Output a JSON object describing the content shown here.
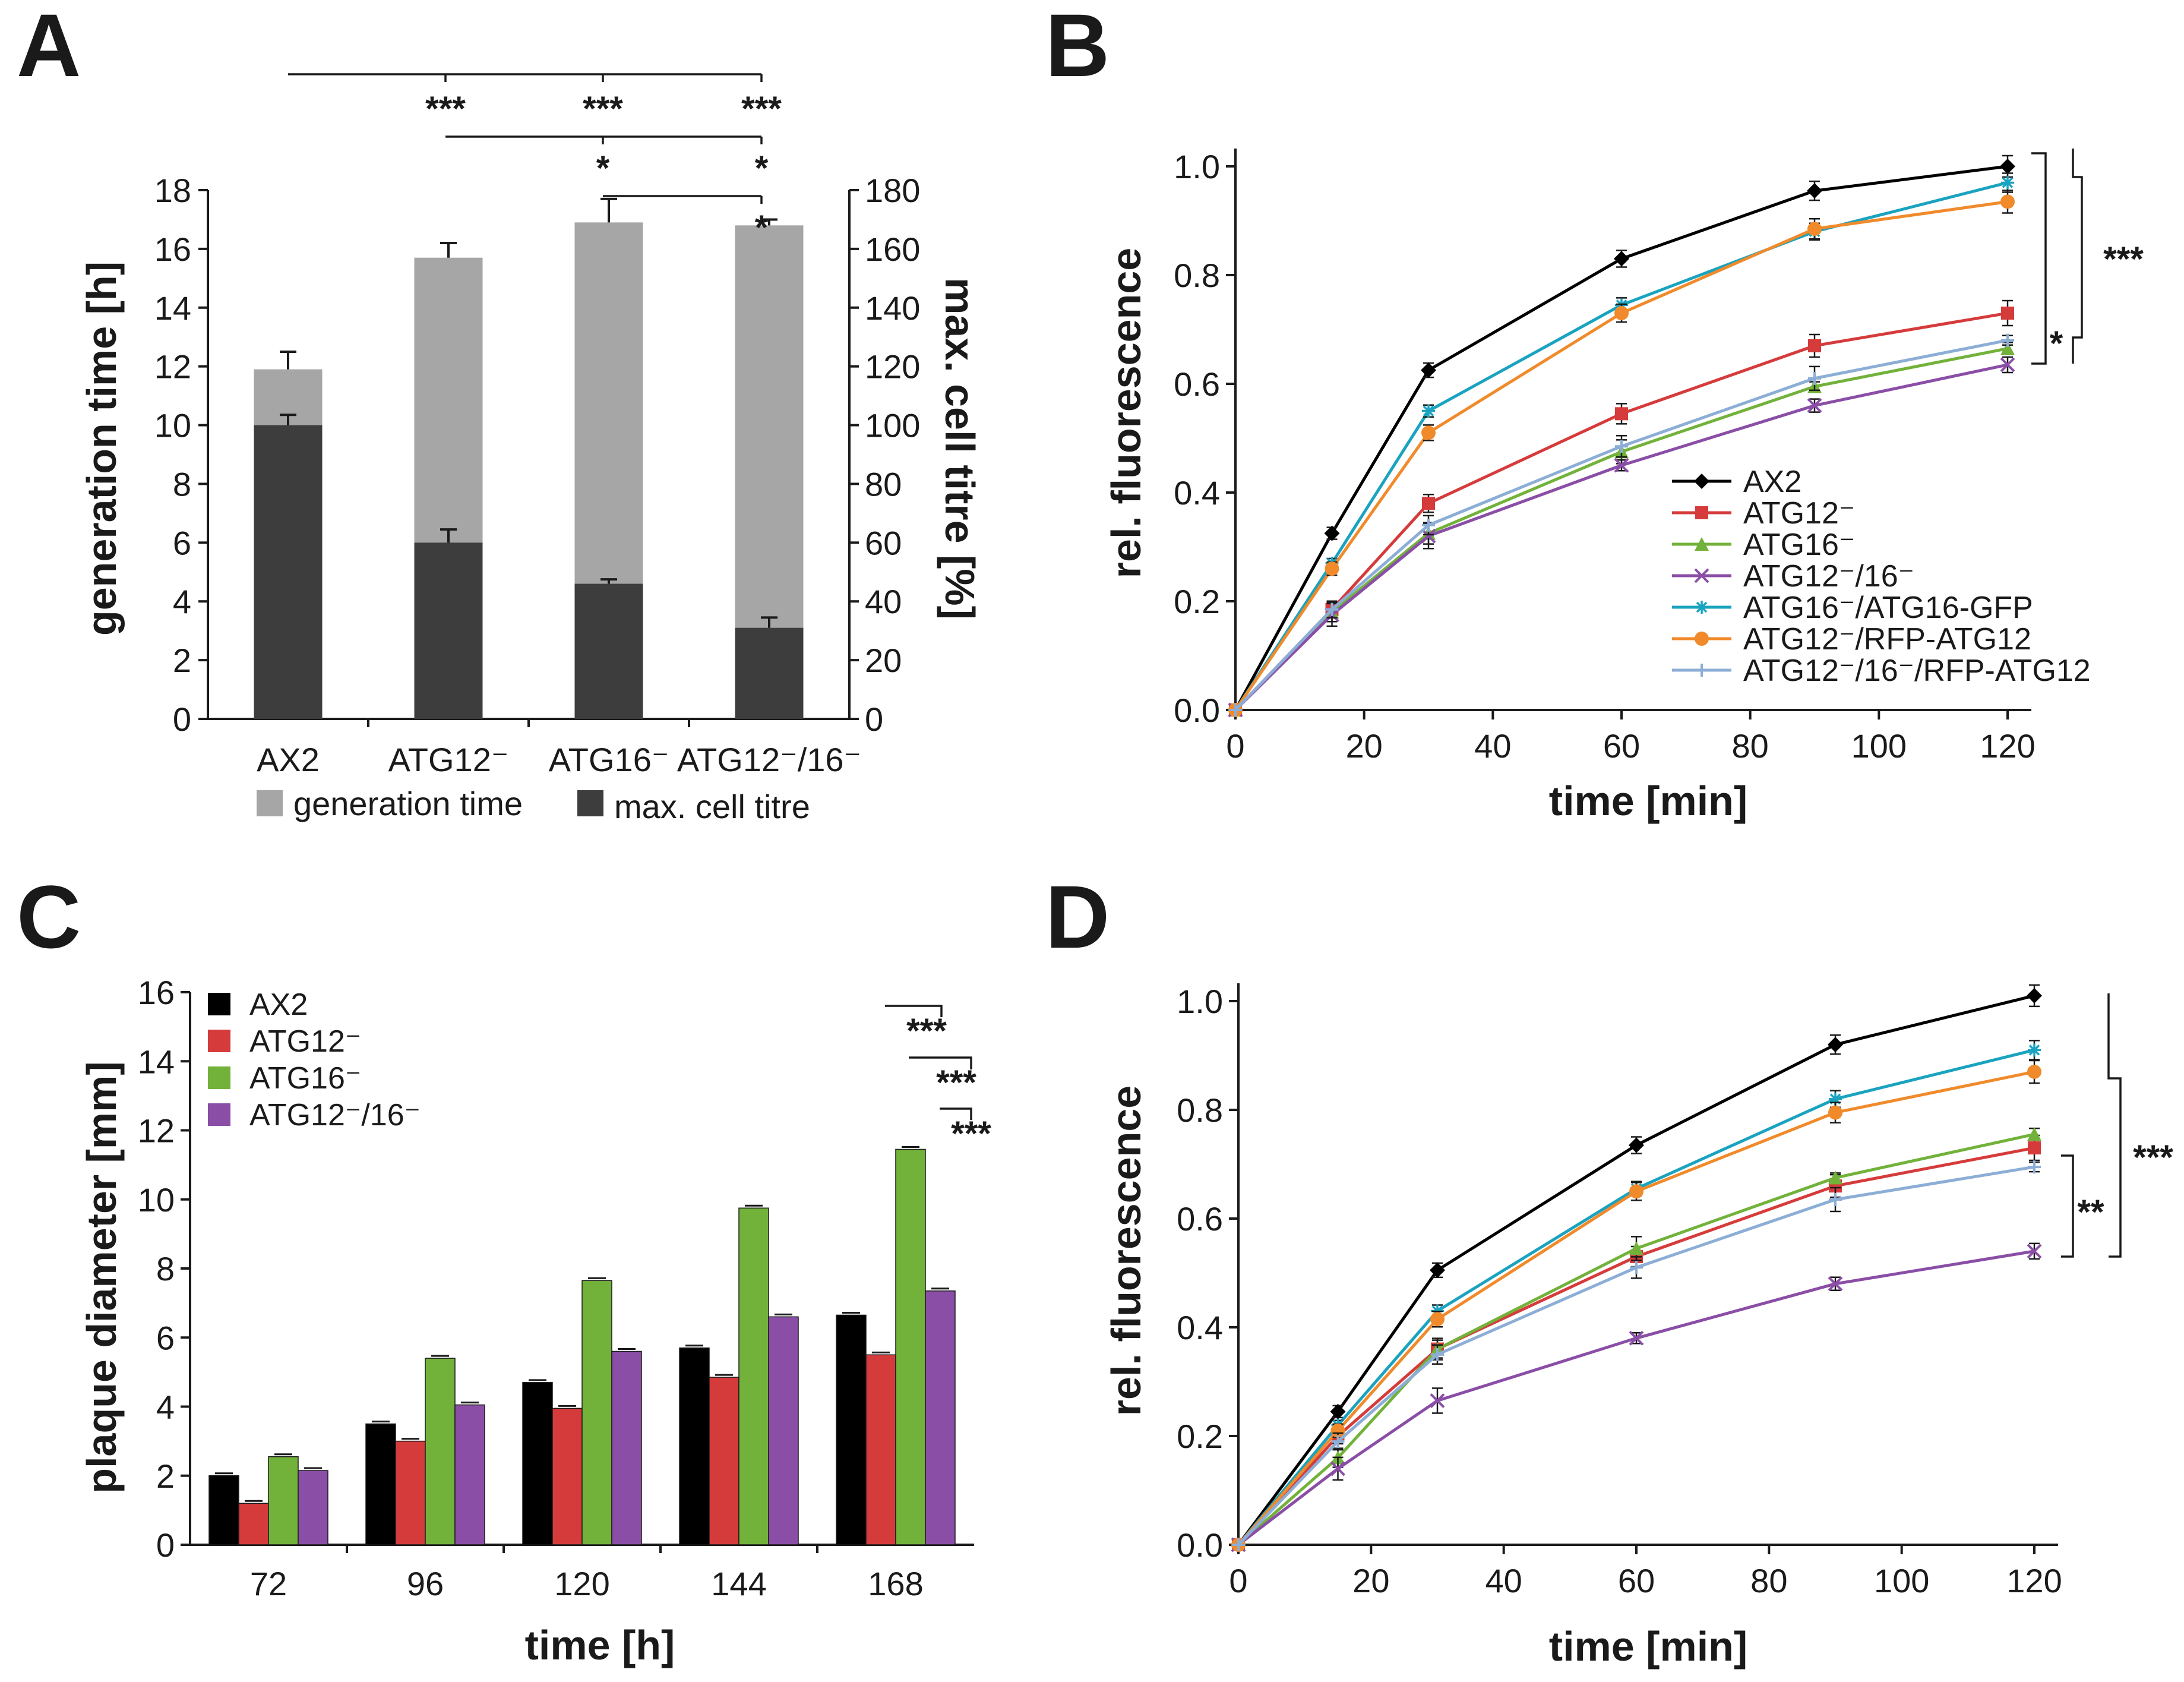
{
  "panels": {
    "A": "A",
    "B": "B",
    "C": "C",
    "D": "D"
  },
  "colors": {
    "gen_time": "#a6a6a6",
    "cell_titre": "#3d3d3d",
    "AX2": "#000000",
    "ATG12": "#d63b3b",
    "ATG16": "#72b23a",
    "ATG12_16": "#8a4ea6",
    "ATG16_GFP": "#1aa3bf",
    "ATG12_RFP": "#f08a2a",
    "ATG12_16_RFP": "#8caed6"
  },
  "chart_data": [
    {
      "id": "A",
      "type": "bar",
      "categories": [
        "AX2",
        "ATG12⁻",
        "ATG16⁻",
        "ATG12⁻/16⁻"
      ],
      "series": [
        {
          "name": "generation time",
          "axis": "left",
          "values": [
            11.9,
            15.7,
            16.9,
            16.8
          ],
          "errors": [
            0.6,
            0.5,
            0.8,
            0.2
          ]
        },
        {
          "name": "max. cell titre",
          "axis": "right",
          "values": [
            100,
            60,
            46,
            31
          ],
          "errors": [
            3.5,
            4.5,
            1.5,
            3.5
          ]
        }
      ],
      "ylabel": "generation time [h]",
      "y2label": "max. cell titre [%]",
      "ylim": [
        0,
        18
      ],
      "y2lim": [
        0,
        180
      ],
      "yticks": [
        "0",
        "2",
        "4",
        "6",
        "8",
        "10",
        "12",
        "14",
        "16",
        "18"
      ],
      "y2ticks": [
        "0",
        "20",
        "40",
        "60",
        "80",
        "100",
        "120",
        "140",
        "160",
        "180"
      ],
      "significance": [
        "***",
        "***",
        "***",
        "*",
        "*",
        "*"
      ]
    },
    {
      "id": "B",
      "type": "line",
      "x": [
        0,
        15,
        30,
        60,
        90,
        120
      ],
      "xticks": [
        "0",
        "20",
        "40",
        "60",
        "80",
        "100",
        "120"
      ],
      "yticks": [
        "0.0",
        "0.2",
        "0.4",
        "0.6",
        "0.8",
        "1.0"
      ],
      "xlim": [
        0,
        120
      ],
      "ylim": [
        0,
        1.0
      ],
      "xlabel": "time [min]",
      "ylabel": "rel. fluorescence",
      "series": [
        {
          "name": "AX2",
          "values": [
            0,
            0.325,
            0.625,
            0.83,
            0.955,
            1.0
          ]
        },
        {
          "name": "ATG12⁻",
          "values": [
            0,
            0.185,
            0.38,
            0.545,
            0.67,
            0.73
          ]
        },
        {
          "name": "ATG16⁻",
          "values": [
            0,
            0.18,
            0.325,
            0.475,
            0.595,
            0.665
          ]
        },
        {
          "name": "ATG12⁻/16⁻",
          "values": [
            0,
            0.175,
            0.32,
            0.45,
            0.56,
            0.635
          ]
        },
        {
          "name": "ATG16⁻/ATG16-GFP",
          "values": [
            0,
            0.27,
            0.55,
            0.745,
            0.88,
            0.97
          ]
        },
        {
          "name": "ATG12⁻/RFP-ATG12",
          "values": [
            0,
            0.26,
            0.51,
            0.73,
            0.885,
            0.935
          ]
        },
        {
          "name": "ATG12⁻/16⁻/RFP-ATG12",
          "values": [
            0,
            0.185,
            0.34,
            0.485,
            0.61,
            0.68
          ]
        }
      ],
      "significance": [
        "***",
        "*"
      ]
    },
    {
      "id": "C",
      "type": "bar",
      "categories": [
        "72",
        "96",
        "120",
        "144",
        "168"
      ],
      "series": [
        {
          "name": "AX2",
          "values": [
            2.0,
            3.5,
            4.7,
            5.7,
            6.65
          ]
        },
        {
          "name": "ATG12⁻",
          "values": [
            1.2,
            3.0,
            3.95,
            4.85,
            5.5
          ]
        },
        {
          "name": "ATG16⁻",
          "values": [
            2.55,
            5.4,
            7.65,
            9.75,
            11.45
          ]
        },
        {
          "name": "ATG12⁻/16⁻",
          "values": [
            2.15,
            4.05,
            5.6,
            6.6,
            7.35
          ]
        }
      ],
      "xlabel": "time [h]",
      "ylabel": "plaque diameter [mm]",
      "ylim": [
        0,
        16
      ],
      "yticks": [
        "0",
        "2",
        "4",
        "6",
        "8",
        "10",
        "12",
        "14",
        "16"
      ],
      "significance": [
        "***",
        "***",
        "***"
      ]
    },
    {
      "id": "D",
      "type": "line",
      "x": [
        0,
        15,
        30,
        60,
        90,
        120
      ],
      "xticks": [
        "0",
        "20",
        "40",
        "60",
        "80",
        "100",
        "120"
      ],
      "yticks": [
        "0.0",
        "0.2",
        "0.4",
        "0.6",
        "0.8",
        "1.0"
      ],
      "xlim": [
        0,
        120
      ],
      "ylim": [
        0,
        1.0
      ],
      "xlabel": "time [min]",
      "ylabel": "rel. fluorescence",
      "series": [
        {
          "name": "AX2",
          "values": [
            0,
            0.245,
            0.505,
            0.735,
            0.92,
            1.01
          ]
        },
        {
          "name": "ATG12⁻",
          "values": [
            0,
            0.2,
            0.36,
            0.53,
            0.66,
            0.73
          ]
        },
        {
          "name": "ATG16⁻",
          "values": [
            0,
            0.16,
            0.36,
            0.545,
            0.675,
            0.755
          ]
        },
        {
          "name": "ATG12⁻/16⁻",
          "values": [
            0,
            0.14,
            0.265,
            0.38,
            0.48,
            0.54
          ]
        },
        {
          "name": "ATG16⁻/ATG16-GFP",
          "values": [
            0,
            0.22,
            0.43,
            0.655,
            0.82,
            0.91
          ]
        },
        {
          "name": "ATG12⁻/RFP-ATG12",
          "values": [
            0,
            0.21,
            0.415,
            0.65,
            0.795,
            0.87
          ]
        },
        {
          "name": "ATG12⁻/16⁻/RFP-ATG12",
          "values": [
            0,
            0.19,
            0.35,
            0.51,
            0.635,
            0.695
          ]
        }
      ],
      "significance": [
        "***",
        "**"
      ]
    }
  ]
}
